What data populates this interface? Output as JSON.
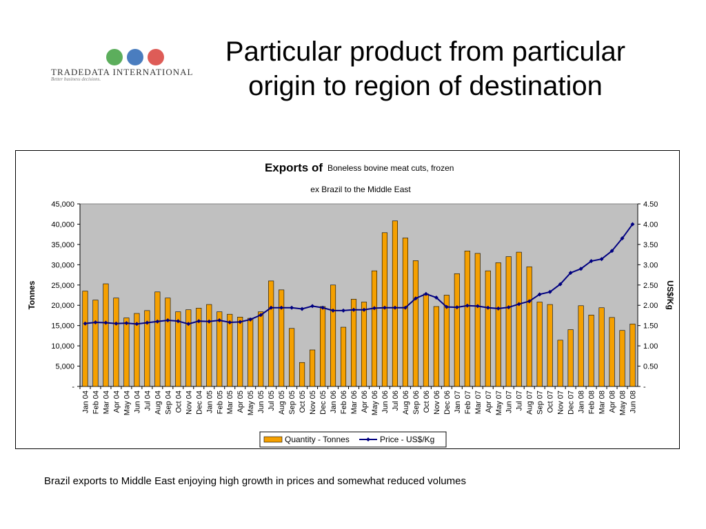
{
  "logo": {
    "brand": "TRADEDATA INTERNATIONAL",
    "tagline": "Better business decisions.",
    "globe_colors": [
      "#3fa040",
      "#2a66b4",
      "#d8403a"
    ]
  },
  "slide": {
    "title_line1": "Particular product from particular",
    "title_line2": "origin to region of destination",
    "caption": "Brazil exports to Middle East enjoying high growth in prices and somewhat reduced volumes"
  },
  "chart_data": {
    "type": "bar+line",
    "title_bold": "Exports of",
    "title_product": "Boneless bovine meat cuts, frozen",
    "subtitle": "ex Brazil to the Middle East",
    "ylabel_left": "Tonnes",
    "ylabel_right": "US$/Kg",
    "ylim_left": [
      0,
      45000
    ],
    "ylim_right": [
      0,
      4.5
    ],
    "yticks_left": [
      "-",
      "5,000",
      "10,000",
      "15,000",
      "20,000",
      "25,000",
      "30,000",
      "35,000",
      "40,000",
      "45,000"
    ],
    "yticks_right": [
      "-",
      "0.50",
      "1.00",
      "1.50",
      "2.00",
      "2.50",
      "3.00",
      "3.50",
      "4.00",
      "4.50"
    ],
    "grid": false,
    "plot_background": "#c0c0c0",
    "legend_position": "bottom",
    "categories": [
      "Jan 04",
      "Feb 04",
      "Mar 04",
      "Apr 04",
      "May 04",
      "Jun 04",
      "Jul 04",
      "Aug 04",
      "Sep 04",
      "Oct 04",
      "Nov 04",
      "Dec 04",
      "Jan 05",
      "Feb 05",
      "Mar 05",
      "Apr 05",
      "May 05",
      "Jun 05",
      "Jul 05",
      "Aug 05",
      "Sep 05",
      "Oct 05",
      "Nov 05",
      "Dec 05",
      "Jan 06",
      "Feb 06",
      "Mar 06",
      "Apr 06",
      "May 06",
      "Jun 06",
      "Jul 06",
      "Aug 06",
      "Sep 06",
      "Oct 06",
      "Nov 06",
      "Dec 06",
      "Jan 07",
      "Feb 07",
      "Mar 07",
      "Apr 07",
      "May 07",
      "Jun 07",
      "Jul 07",
      "Aug 07",
      "Sep 07",
      "Oct 07",
      "Nov 07",
      "Dec 07",
      "Jan 08",
      "Feb 08",
      "Mar 08",
      "Apr 08",
      "May 08",
      "Jun 08"
    ],
    "series": [
      {
        "name": "Quantity - Tonnes",
        "axis": "left",
        "kind": "bar",
        "color": "#f5a000",
        "values": [
          23500,
          21300,
          25300,
          21800,
          16900,
          18000,
          18700,
          23300,
          21800,
          18400,
          18900,
          19300,
          20200,
          18400,
          17800,
          17100,
          16800,
          18400,
          26000,
          23800,
          14300,
          5900,
          9000,
          19700,
          25000,
          14600,
          21500,
          20800,
          28500,
          37900,
          40800,
          36600,
          31000,
          22800,
          19700,
          22500,
          27800,
          33400,
          32800,
          28500,
          30500,
          32000,
          33100,
          29500,
          20800,
          20200,
          11400,
          14000,
          19900,
          17600,
          19400,
          17000,
          13800,
          15400
        ]
      },
      {
        "name": "Price - US$/Kg",
        "axis": "right",
        "kind": "line",
        "color": "#000080",
        "values": [
          1.55,
          1.58,
          1.57,
          1.55,
          1.56,
          1.54,
          1.57,
          1.6,
          1.63,
          1.61,
          1.54,
          1.61,
          1.6,
          1.63,
          1.58,
          1.59,
          1.65,
          1.76,
          1.94,
          1.94,
          1.94,
          1.91,
          1.98,
          1.94,
          1.87,
          1.87,
          1.89,
          1.89,
          1.93,
          1.94,
          1.94,
          1.94,
          2.17,
          2.28,
          2.19,
          1.96,
          1.95,
          1.99,
          1.98,
          1.94,
          1.92,
          1.95,
          2.03,
          2.1,
          2.27,
          2.33,
          2.52,
          2.8,
          2.9,
          3.09,
          3.14,
          3.34,
          3.65,
          4.0
        ]
      }
    ]
  }
}
